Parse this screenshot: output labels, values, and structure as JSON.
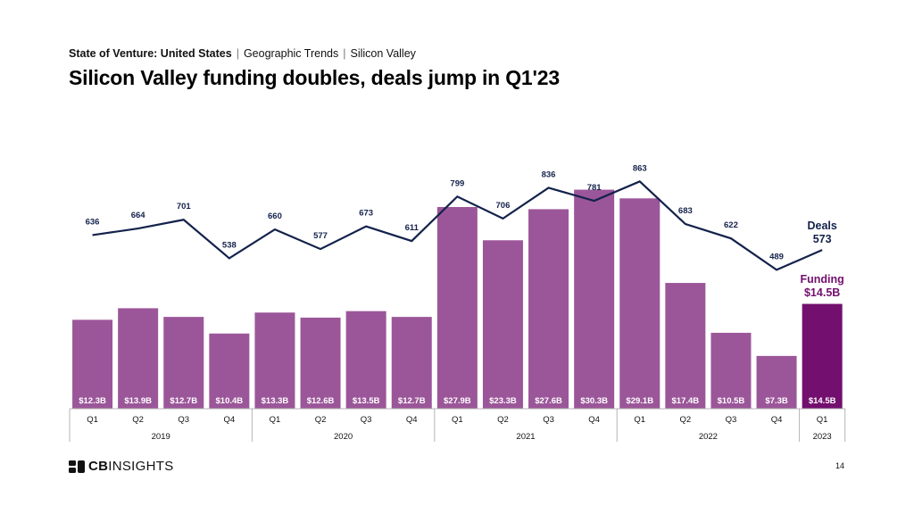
{
  "header": {
    "breadcrumb": [
      "State of Venture: United States",
      "Geographic Trends",
      "Silicon Valley"
    ],
    "title": "Silicon Valley funding doubles, deals jump in Q1'23"
  },
  "colors": {
    "bar": "#9b5699",
    "bar_highlight": "#730f6e",
    "line": "#13224b",
    "bar_label": "#ffffff",
    "funding_callout": "#730f6e",
    "axis": "#b5b5b5"
  },
  "chart_data": {
    "type": "bar",
    "categories": [
      "Q1",
      "Q2",
      "Q3",
      "Q4",
      "Q1",
      "Q2",
      "Q3",
      "Q4",
      "Q1",
      "Q2",
      "Q3",
      "Q4",
      "Q1",
      "Q2",
      "Q3",
      "Q4",
      "Q1"
    ],
    "years": [
      {
        "label": "2019",
        "span": 4
      },
      {
        "label": "2020",
        "span": 4
      },
      {
        "label": "2021",
        "span": 4
      },
      {
        "label": "2022",
        "span": 4
      },
      {
        "label": "2023",
        "span": 1
      }
    ],
    "series": [
      {
        "type": "bar",
        "values": [
          12.3,
          13.9,
          12.7,
          10.4,
          13.3,
          12.6,
          13.5,
          12.7,
          27.9,
          23.3,
          27.6,
          30.3,
          29.1,
          17.4,
          10.5,
          7.3,
          14.5
        ],
        "labels": [
          "$12.3B",
          "$13.9B",
          "$12.7B",
          "$10.4B",
          "$13.3B",
          "$12.6B",
          "$13.5B",
          "$12.7B",
          "$27.9B",
          "$23.3B",
          "$27.6B",
          "$30.3B",
          "$29.1B",
          "$17.4B",
          "$10.5B",
          "$7.3B",
          "$14.5B"
        ]
      },
      {
        "type": "line",
        "values": [
          636,
          664,
          701,
          538,
          660,
          577,
          673,
          611,
          799,
          706,
          836,
          781,
          863,
          683,
          622,
          489,
          573
        ]
      }
    ],
    "callouts": {
      "deals": {
        "label": "Deals",
        "value": "573"
      },
      "funding": {
        "label": "Funding",
        "value": "$14.5B"
      }
    },
    "highlight_index": 16
  },
  "footer": {
    "logo_text_bold": "CB",
    "logo_text_rest": "INSIGHTS",
    "page_number": "14"
  }
}
